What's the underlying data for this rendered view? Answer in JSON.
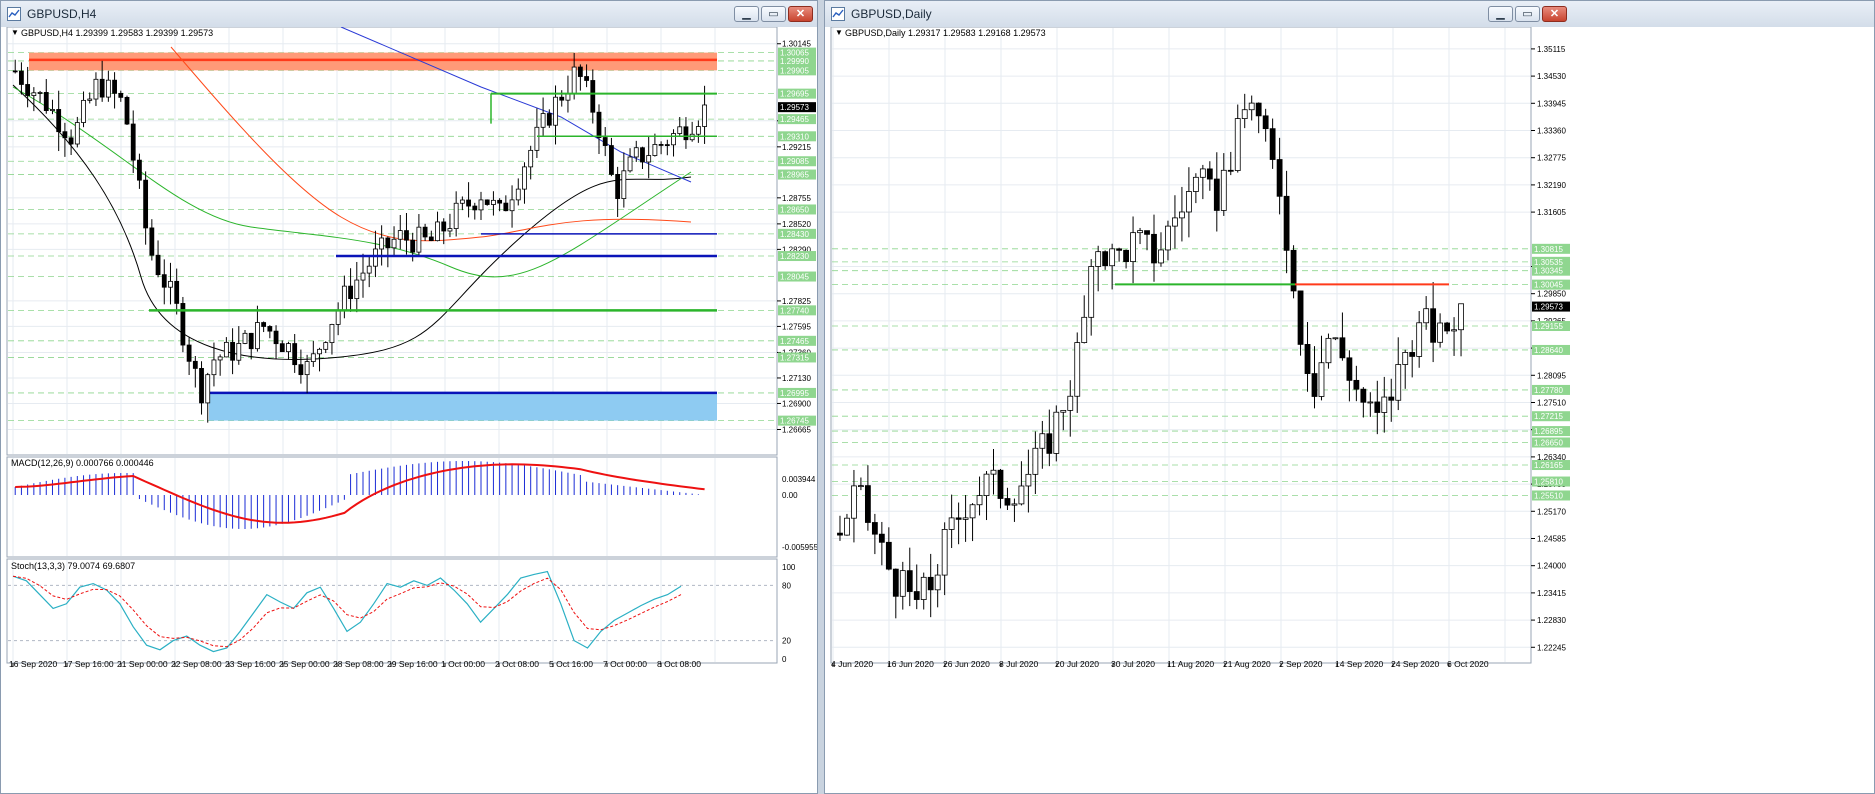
{
  "windows": {
    "left": {
      "title": "GBPUSD,H4",
      "header": "GBPUSD,H4  1.29399 1.29583 1.29399 1.29573",
      "macd_label": "MACD(12,26,9) 0.000766 0.000446",
      "stoch_label": "Stoch(13,3,3) 79.0074 69.6807"
    },
    "right": {
      "title": "GBPUSD,Daily",
      "header": "GBPUSD,Daily  1.29317 1.29583 1.29168 1.29573"
    },
    "buttons": {
      "minimize": "▁",
      "maximize": "▭",
      "close": "✕"
    }
  },
  "colors": {
    "grid": "#e6ebf1",
    "level_green": "#8ed58e",
    "candle": "#000000",
    "sup_green": "#2bb52b",
    "res_blue": "#0a14b8",
    "red_line": "#ff3a1a",
    "orange_zone": "#ff9a78",
    "blue_zone": "#8ecbf2",
    "macd_hist": "#1a2bd6",
    "macd_signal": "#ee1111",
    "stoch_main": "#2bb0c4",
    "stoch_signal": "#ee1111",
    "label_green_bg": "#8fd68f",
    "price_black_bg": "#000000"
  },
  "chart_data": [
    {
      "type": "candlestick",
      "title": "GBPUSD,H4",
      "ohlc_last": {
        "open": 1.29399,
        "high": 1.29583,
        "low": 1.29399,
        "close": 1.29573
      },
      "ylim": [
        1.26435,
        1.3026
      ],
      "y_ticks": [
        "1.30145",
        "1.29450",
        "1.29215",
        "1.28755",
        "1.28520",
        "1.28290",
        "1.27825",
        "1.27595",
        "1.27360",
        "1.27130",
        "1.26900",
        "1.26665"
      ],
      "level_labels": [
        "1.30065",
        "1.29990",
        "1.29905",
        "1.29695",
        "1.29465",
        "1.29310",
        "1.29085",
        "1.28965",
        "1.28650",
        "1.28430",
        "1.28230",
        "1.28045",
        "1.27740",
        "1.27465",
        "1.27315",
        "1.26995",
        "1.26745"
      ],
      "x_labels": [
        "16 Sep 2020",
        "17 Sep 16:00",
        "21 Sep 00:00",
        "22 Sep 08:00",
        "23 Sep 16:00",
        "25 Sep 00:00",
        "28 Sep 08:00",
        "29 Sep 16:00",
        "1 Oct 00:00",
        "2 Oct 08:00",
        "5 Oct 16:00",
        "7 Oct 00:00",
        "8 Oct 08:00"
      ],
      "levels": {
        "red_resistance": 1.3,
        "orange_zone": [
          1.29905,
          1.30065
        ],
        "green_upper": 1.29695,
        "green_mid": 1.2931,
        "blue_upper": 1.2843,
        "blue_mid": 1.2823,
        "green_support": 1.2774,
        "blue_support": 1.26995,
        "blue_zone": [
          1.26745,
          1.26995
        ]
      },
      "indicators": {
        "macd": {
          "params": "12,26,9",
          "main": 0.000766,
          "signal": 0.000446,
          "ticks": [
            "0.003944",
            "0.00",
            "-0.005955"
          ]
        },
        "stochastic": {
          "params": "13,3,3",
          "k": 79.0074,
          "d": 69.6807,
          "ticks": [
            "100",
            "80",
            "20",
            "0"
          ]
        }
      }
    },
    {
      "type": "candlestick",
      "title": "GBPUSD,Daily",
      "ohlc_last": {
        "open": 1.29317,
        "high": 1.29583,
        "low": 1.29168,
        "close": 1.29573
      },
      "ylim": [
        1.2195,
        1.355
      ],
      "y_ticks": [
        "1.35115",
        "1.34530",
        "1.33945",
        "1.33360",
        "1.32775",
        "1.32190",
        "1.31605",
        "1.30435",
        "1.29850",
        "1.29265",
        "1.28680",
        "1.28095",
        "1.27510",
        "1.26925",
        "1.26340",
        "1.25755",
        "1.25170",
        "1.24585",
        "1.24000",
        "1.23415",
        "1.22830",
        "1.22245"
      ],
      "level_labels": [
        "1.30815",
        "1.30535",
        "1.30345",
        "1.30045",
        "1.29155",
        "1.28640",
        "1.27780",
        "1.27215",
        "1.26895",
        "1.26650",
        "1.26165",
        "1.25810",
        "1.25510"
      ],
      "current_price": "1.29573",
      "x_labels": [
        "4 Jun 2020",
        "16 Jun 2020",
        "26 Jun 2020",
        "8 Jul 2020",
        "20 Jul 2020",
        "30 Jul 2020",
        "11 Aug 2020",
        "21 Aug 2020",
        "2 Sep 2020",
        "14 Sep 2020",
        "24 Sep 2020",
        "6 Oct 2020"
      ],
      "levels": {
        "green_support": 1.3005,
        "red_resistance": 1.3005
      }
    }
  ]
}
